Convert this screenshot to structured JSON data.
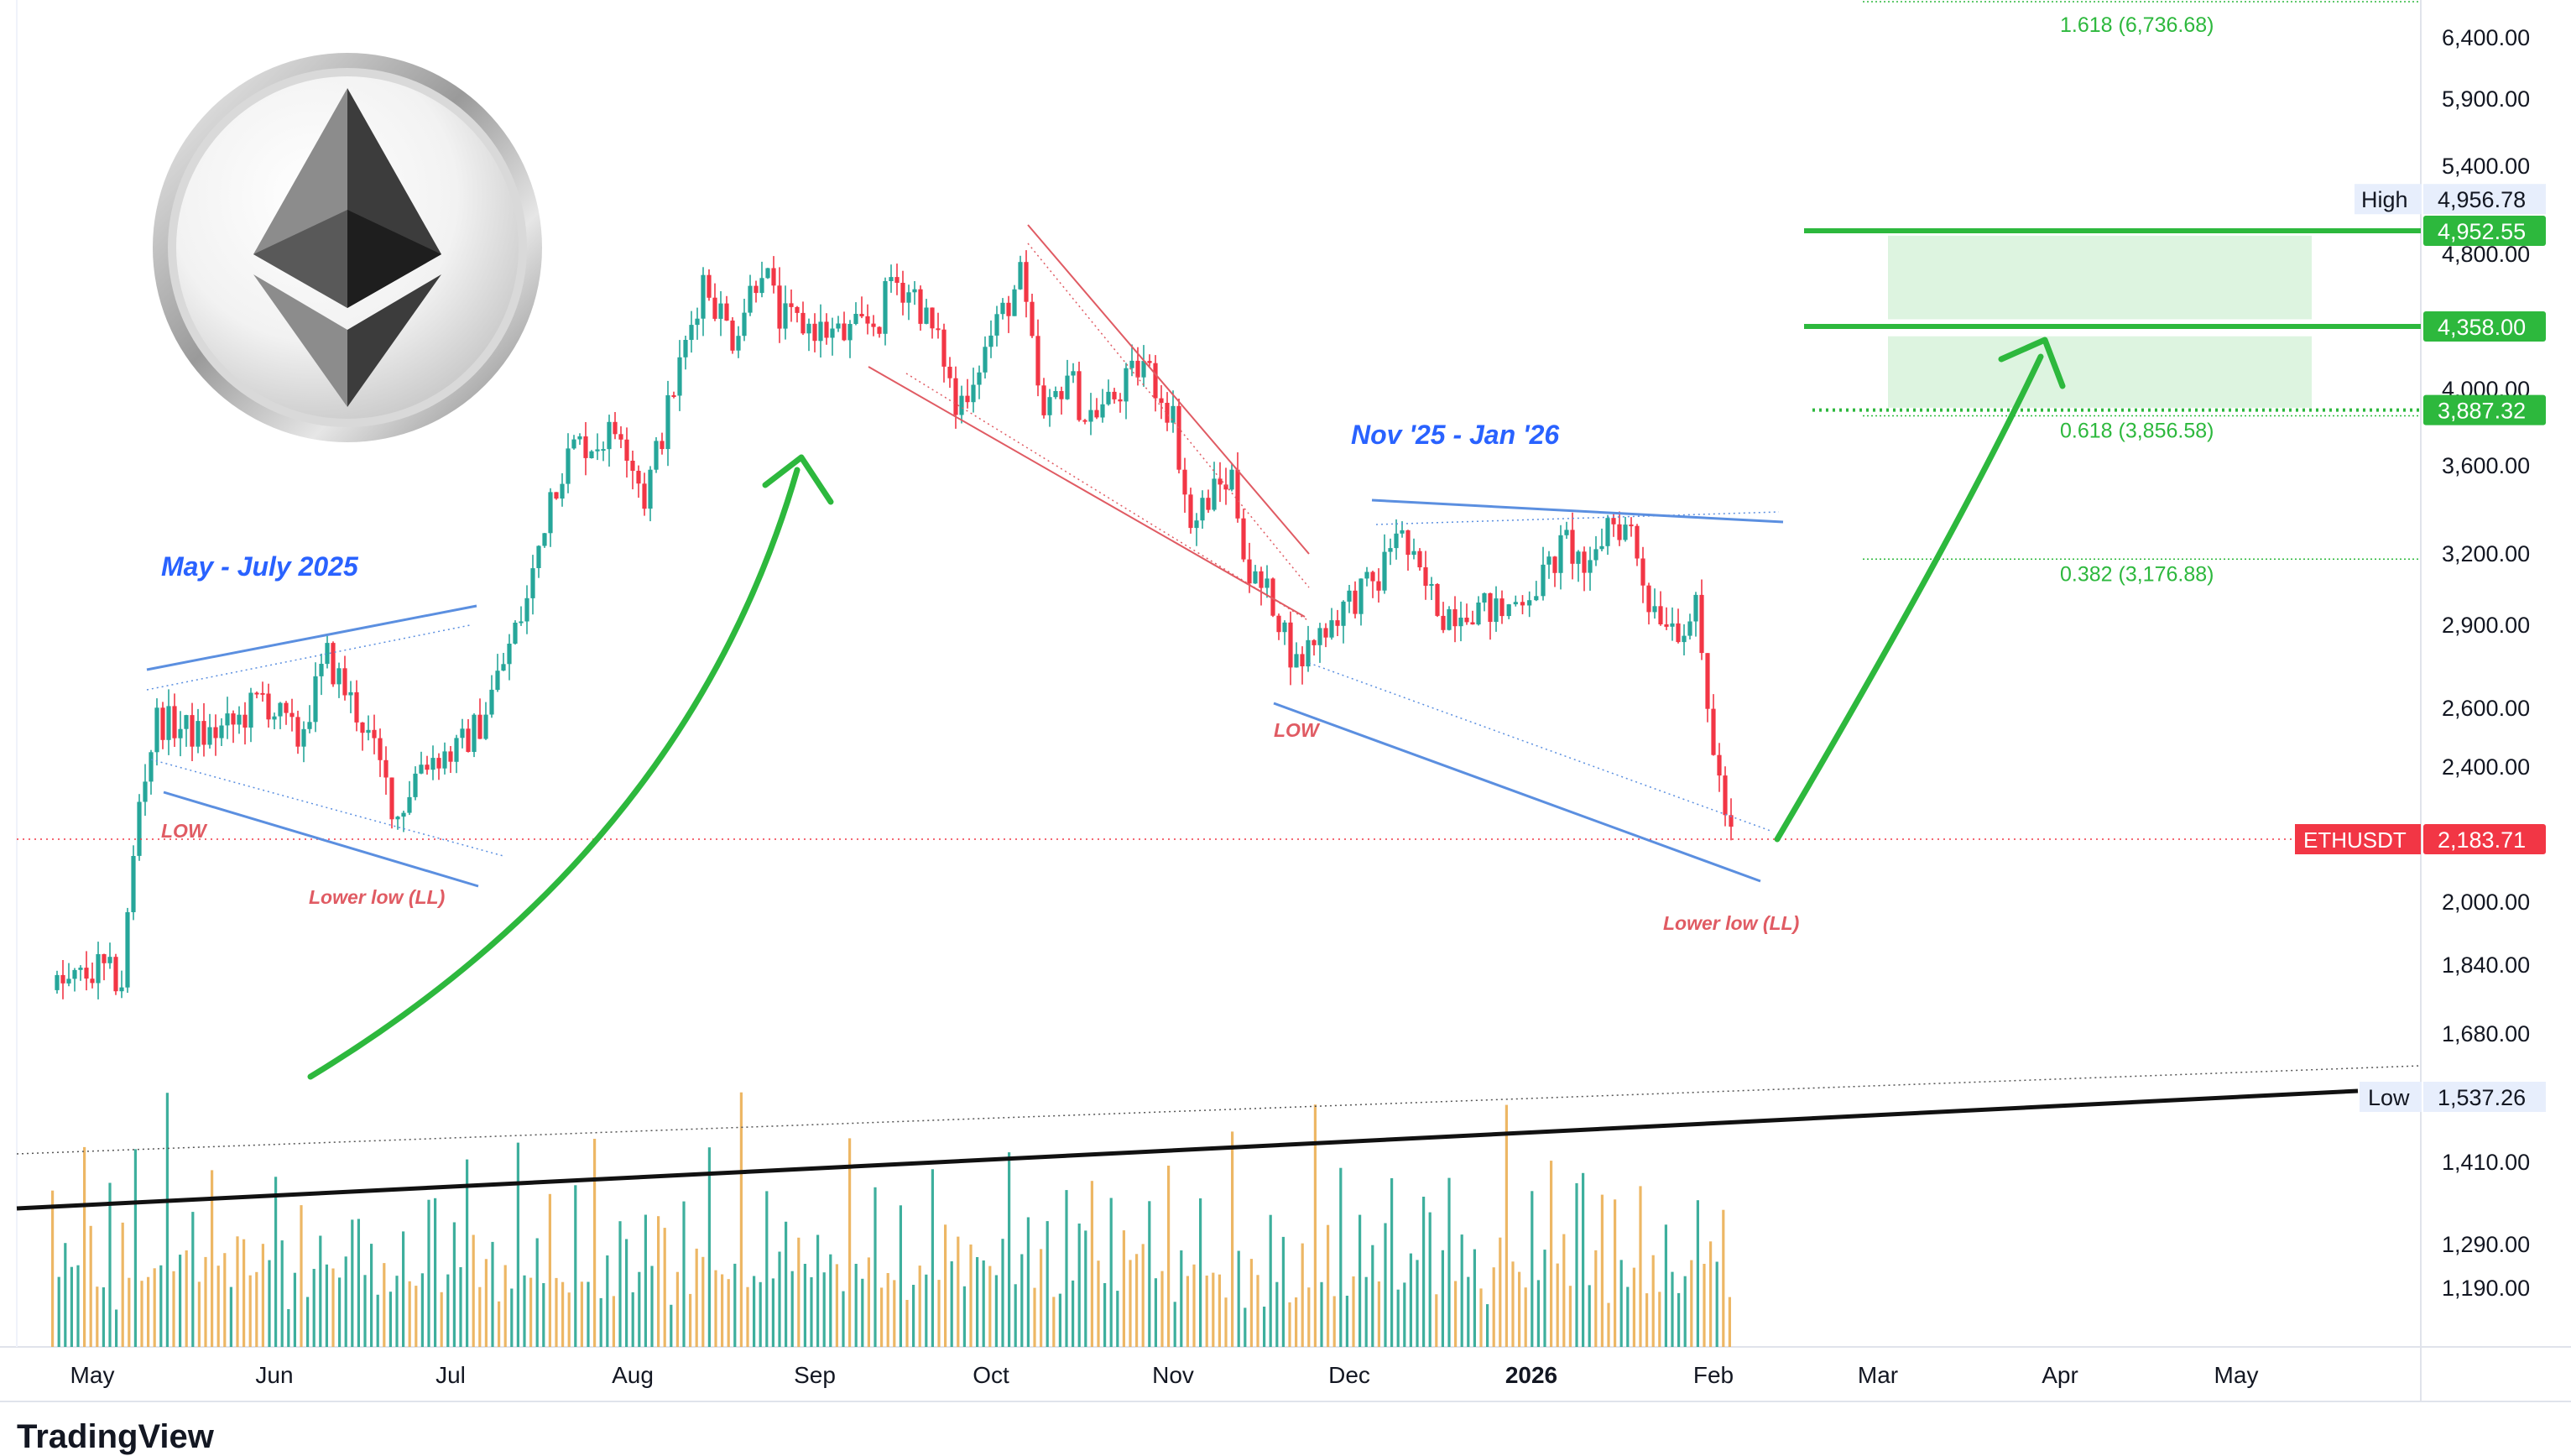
{
  "chart_data": {
    "type": "candlestick",
    "symbol": "ETHUSDT",
    "last_price": 2183.71,
    "x_months": [
      "May",
      "Jun",
      "Jul",
      "Aug",
      "Sep",
      "Oct",
      "Nov",
      "Dec",
      "2026",
      "Feb",
      "Mar",
      "Apr",
      "May"
    ],
    "y_ticks": [
      6400,
      5900,
      5400,
      4800,
      4000,
      3600,
      3200,
      2900,
      2600,
      2400,
      2000,
      1840,
      1680,
      1410,
      1290,
      1190
    ],
    "y_tick_labels": [
      "6,400.00",
      "5,900.00",
      "5,400.00",
      "4,800.00",
      "4,000.00",
      "3,600.00",
      "3,200.00",
      "2,900.00",
      "2,600.00",
      "2,400.00",
      "2,000.00",
      "1,840.00",
      "1,680.00",
      "1,410.00",
      "1,290.00",
      "1,190.00"
    ],
    "price_path": [
      [
        "2025-04-24",
        1780
      ],
      [
        "2025-04-28",
        1800
      ],
      [
        "2025-05-02",
        1830
      ],
      [
        "2025-05-06",
        1800
      ],
      [
        "2025-05-09",
        2300
      ],
      [
        "2025-05-12",
        2560
      ],
      [
        "2025-05-16",
        2530
      ],
      [
        "2025-05-20",
        2500
      ],
      [
        "2025-05-25",
        2540
      ],
      [
        "2025-05-30",
        2640
      ],
      [
        "2025-06-05",
        2490
      ],
      [
        "2025-06-10",
        2780
      ],
      [
        "2025-06-16",
        2550
      ],
      [
        "2025-06-22",
        2250
      ],
      [
        "2025-06-26",
        2420
      ],
      [
        "2025-07-02",
        2450
      ],
      [
        "2025-07-06",
        2550
      ],
      [
        "2025-07-10",
        2760
      ],
      [
        "2025-07-14",
        3000
      ],
      [
        "2025-07-18",
        3480
      ],
      [
        "2025-07-22",
        3700
      ],
      [
        "2025-07-26",
        3720
      ],
      [
        "2025-07-30",
        3800
      ],
      [
        "2025-08-03",
        3450
      ],
      [
        "2025-08-08",
        4000
      ],
      [
        "2025-08-13",
        4650
      ],
      [
        "2025-08-18",
        4300
      ],
      [
        "2025-08-23",
        4750
      ],
      [
        "2025-08-26",
        4400
      ],
      [
        "2025-09-01",
        4350
      ],
      [
        "2025-09-06",
        4300
      ],
      [
        "2025-09-12",
        4400
      ],
      [
        "2025-09-14",
        4650
      ],
      [
        "2025-09-18",
        4550
      ],
      [
        "2025-09-23",
        4180
      ],
      [
        "2025-09-25",
        3880
      ],
      [
        "2025-10-01",
        4300
      ],
      [
        "2025-10-06",
        4650
      ],
      [
        "2025-10-10",
        3820
      ],
      [
        "2025-10-14",
        4100
      ],
      [
        "2025-10-17",
        3850
      ],
      [
        "2025-10-22",
        3950
      ],
      [
        "2025-10-27",
        4150
      ],
      [
        "2025-11-01",
        3850
      ],
      [
        "2025-11-04",
        3300
      ],
      [
        "2025-11-07",
        3450
      ],
      [
        "2025-11-11",
        3550
      ],
      [
        "2025-11-14",
        3100
      ],
      [
        "2025-11-18",
        3000
      ],
      [
        "2025-11-22",
        2750
      ],
      [
        "2025-11-25",
        2850
      ],
      [
        "2025-11-29",
        2950
      ],
      [
        "2025-12-02",
        3020
      ],
      [
        "2025-12-06",
        3080
      ],
      [
        "2025-12-09",
        3320
      ],
      [
        "2025-12-13",
        3090
      ],
      [
        "2025-12-17",
        2950
      ],
      [
        "2025-12-21",
        2980
      ],
      [
        "2025-12-27",
        2950
      ],
      [
        "2026-01-03",
        3100
      ],
      [
        "2026-01-07",
        3250
      ],
      [
        "2026-01-11",
        3100
      ],
      [
        "2026-01-14",
        3350
      ],
      [
        "2026-01-18",
        3300
      ],
      [
        "2026-01-21",
        3000
      ],
      [
        "2026-01-26",
        2900
      ],
      [
        "2026-01-29",
        2950
      ],
      [
        "2026-01-31",
        2600
      ],
      [
        "2026-02-02",
        2350
      ],
      [
        "2026-02-04",
        2183.71
      ]
    ],
    "volume_pattern": [
      90,
      35,
      55,
      70,
      40,
      110,
      60,
      30,
      45,
      80,
      25,
      65,
      50,
      95,
      40,
      30,
      70,
      55,
      120,
      35,
      60,
      45,
      85,
      30,
      50,
      100,
      40,
      65,
      35,
      75
    ],
    "fib_levels": [
      {
        "label": "1.618 (6,736.68)",
        "value": 6736.68
      },
      {
        "label": "0.618 (3,856.58)",
        "value": 3856.58
      },
      {
        "label": "0.382 (3,176.88)",
        "value": 3176.88
      }
    ],
    "horizontal_levels": [
      {
        "value": 4952.55,
        "label": "4,952.55",
        "color": "#2db83d",
        "style": "solid"
      },
      {
        "value": 4358.0,
        "label": "4,358.00",
        "color": "#2db83d",
        "style": "solid"
      },
      {
        "value": 3887.32,
        "label": "3,887.32",
        "color": "#2db83d",
        "style": "dotted"
      }
    ],
    "high": {
      "tag": "High",
      "label": "4,956.78",
      "value": 4956.78
    },
    "low": {
      "tag": "Low",
      "label": "1,537.26",
      "value": 1537.26
    },
    "price_tag": {
      "tag": "ETHUSDT",
      "label": "2,183.71"
    },
    "target_boxes": [
      {
        "from": 4400,
        "to": 4920
      },
      {
        "from": 3900,
        "to": 4300
      }
    ],
    "annotations": {
      "may_july": "May - July 2025",
      "nov_jan": "Nov '25 - Jan '26",
      "low_1": "LOW",
      "lower_low_1": "Lower low (LL)",
      "low_2": "LOW",
      "lower_low_2": "Lower low (LL)"
    },
    "colors": {
      "up": "#26a69a",
      "up_bar": "#089981",
      "down": "#f23645",
      "green_line": "#2db83d",
      "blue_line": "#5b8fe0",
      "red_line": "#e05b63",
      "price_red": "#f23645",
      "annotation_blue": "#2962ff",
      "fib_text": "#2db83d"
    },
    "branding": "TradingView",
    "logo": "ethereum-coin-logo"
  }
}
